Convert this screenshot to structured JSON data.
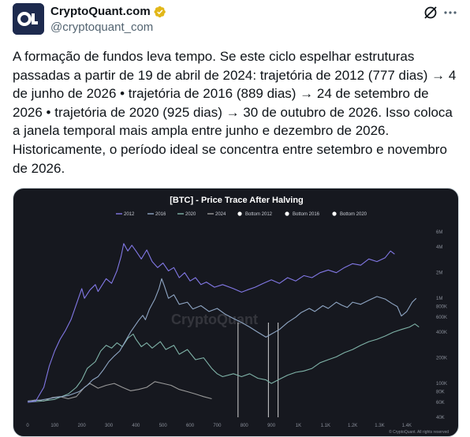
{
  "author": {
    "display_name": "CryptoQuant.com",
    "handle": "@cryptoquant_com",
    "verified_badge_color": "#e2b719",
    "avatar_icon": "cryptoquant-logo-icon"
  },
  "actions": {
    "grok_icon": "grok-icon",
    "more_icon": "more-horizontal-icon"
  },
  "tweet": {
    "text": "A formação de fundos leva tempo. Se este ciclo espelhar estruturas passadas a partir de 19 de abril de 2024: trajetória de 2012 (777 dias) → 4 de junho de 2026 • trajetória de 2016 (889 dias) → 24 de setembro de 2026 • trajetória de 2020 (925 dias) → 30 de outubro de 2026. Isso coloca a janela temporal mais ampla entre junho e dezembro de 2026. Historicamente, o período ideal se concentra entre setembro e novembro de 2026."
  },
  "chart_data": {
    "type": "line",
    "title": "[BTC] - Price Trace After Halving",
    "watermark": "CryptoQuant",
    "footer": "© CryptoQuant. All rights reserved",
    "y_scale": "log",
    "grid": false,
    "legend_position": "top",
    "xlim": [
      0,
      1450
    ],
    "ylim": [
      40000,
      7000000
    ],
    "x_ticks": [
      "0",
      "100",
      "200",
      "300",
      "400",
      "500",
      "600",
      "700",
      "800",
      "900",
      "1K",
      "1.1K",
      "1.2K",
      "1.3K",
      "1.4K"
    ],
    "x_tick_values": [
      0,
      100,
      200,
      300,
      400,
      500,
      600,
      700,
      800,
      900,
      1000,
      1100,
      1200,
      1300,
      1400
    ],
    "y_ticks": [
      "6M",
      "4M",
      "2M",
      "1M",
      "800K",
      "600K",
      "400K",
      "200K",
      "100K",
      "80K",
      "60K",
      "40K"
    ],
    "y_tick_values": [
      6000000,
      4000000,
      2000000,
      1000000,
      800000,
      600000,
      400000,
      200000,
      100000,
      80000,
      60000,
      40000
    ],
    "legend": [
      {
        "label": "2012",
        "color": "#8278e6",
        "style": "line"
      },
      {
        "label": "2016",
        "color": "#8fa6c4",
        "style": "line"
      },
      {
        "label": "2020",
        "color": "#7fb3a8",
        "style": "line"
      },
      {
        "label": "2024",
        "color": "#9a9a9a",
        "style": "line"
      },
      {
        "label": "Bottom 2012",
        "color": "#ffffff",
        "style": "dot"
      },
      {
        "label": "Bottom 2016",
        "color": "#ffffff",
        "style": "dot"
      },
      {
        "label": "Bottom 2020",
        "color": "#ffffff",
        "style": "dot"
      }
    ],
    "bottom_markers_x": [
      777,
      889,
      925
    ],
    "series": [
      {
        "name": "2012",
        "color": "#8278e6",
        "points": [
          [
            0,
            60000
          ],
          [
            30,
            62000
          ],
          [
            60,
            90000
          ],
          [
            80,
            160000
          ],
          [
            100,
            240000
          ],
          [
            120,
            330000
          ],
          [
            140,
            420000
          ],
          [
            160,
            560000
          ],
          [
            180,
            850000
          ],
          [
            200,
            1300000
          ],
          [
            210,
            1000000
          ],
          [
            230,
            1250000
          ],
          [
            250,
            1450000
          ],
          [
            260,
            1200000
          ],
          [
            290,
            1700000
          ],
          [
            310,
            1500000
          ],
          [
            330,
            2100000
          ],
          [
            345,
            3100000
          ],
          [
            355,
            4400000
          ],
          [
            370,
            3600000
          ],
          [
            385,
            4200000
          ],
          [
            400,
            3600000
          ],
          [
            420,
            2900000
          ],
          [
            440,
            3700000
          ],
          [
            460,
            2700000
          ],
          [
            480,
            2300000
          ],
          [
            500,
            2600000
          ],
          [
            520,
            2100000
          ],
          [
            540,
            2300000
          ],
          [
            560,
            1750000
          ],
          [
            580,
            2000000
          ],
          [
            600,
            1600000
          ],
          [
            620,
            1750000
          ],
          [
            640,
            1450000
          ],
          [
            660,
            1550000
          ],
          [
            690,
            1350000
          ],
          [
            720,
            1450000
          ],
          [
            760,
            1300000
          ],
          [
            790,
            1180000
          ],
          [
            810,
            1250000
          ],
          [
            840,
            1350000
          ],
          [
            870,
            1500000
          ],
          [
            900,
            1650000
          ],
          [
            930,
            1500000
          ],
          [
            960,
            1750000
          ],
          [
            990,
            1600000
          ],
          [
            1020,
            1850000
          ],
          [
            1050,
            1750000
          ],
          [
            1080,
            2000000
          ],
          [
            1110,
            2150000
          ],
          [
            1140,
            2000000
          ],
          [
            1170,
            2300000
          ],
          [
            1200,
            2550000
          ],
          [
            1230,
            2450000
          ],
          [
            1260,
            2900000
          ],
          [
            1290,
            2700000
          ],
          [
            1320,
            3000000
          ],
          [
            1340,
            3600000
          ],
          [
            1355,
            3300000
          ]
        ]
      },
      {
        "name": "2016",
        "color": "#8fa6c4",
        "points": [
          [
            0,
            62000
          ],
          [
            50,
            64000
          ],
          [
            100,
            68000
          ],
          [
            150,
            72000
          ],
          [
            190,
            80000
          ],
          [
            220,
            95000
          ],
          [
            240,
            110000
          ],
          [
            260,
            120000
          ],
          [
            280,
            145000
          ],
          [
            300,
            180000
          ],
          [
            320,
            210000
          ],
          [
            340,
            240000
          ],
          [
            360,
            310000
          ],
          [
            380,
            400000
          ],
          [
            395,
            470000
          ],
          [
            410,
            550000
          ],
          [
            425,
            630000
          ],
          [
            435,
            560000
          ],
          [
            450,
            750000
          ],
          [
            470,
            980000
          ],
          [
            485,
            1300000
          ],
          [
            495,
            1700000
          ],
          [
            505,
            1400000
          ],
          [
            520,
            1000000
          ],
          [
            540,
            1100000
          ],
          [
            560,
            850000
          ],
          [
            590,
            900000
          ],
          [
            610,
            750000
          ],
          [
            640,
            820000
          ],
          [
            670,
            700000
          ],
          [
            700,
            760000
          ],
          [
            730,
            650000
          ],
          [
            760,
            580000
          ],
          [
            790,
            520000
          ],
          [
            820,
            460000
          ],
          [
            850,
            400000
          ],
          [
            880,
            350000
          ],
          [
            900,
            380000
          ],
          [
            930,
            430000
          ],
          [
            960,
            520000
          ],
          [
            990,
            600000
          ],
          [
            1010,
            680000
          ],
          [
            1040,
            760000
          ],
          [
            1060,
            700000
          ],
          [
            1090,
            820000
          ],
          [
            1110,
            760000
          ],
          [
            1140,
            900000
          ],
          [
            1160,
            830000
          ],
          [
            1180,
            780000
          ],
          [
            1200,
            900000
          ],
          [
            1230,
            850000
          ],
          [
            1260,
            950000
          ],
          [
            1290,
            1050000
          ],
          [
            1320,
            980000
          ],
          [
            1345,
            870000
          ],
          [
            1365,
            800000
          ],
          [
            1380,
            620000
          ],
          [
            1400,
            700000
          ],
          [
            1420,
            900000
          ],
          [
            1435,
            1000000
          ]
        ]
      },
      {
        "name": "2020",
        "color": "#7fb3a8",
        "points": [
          [
            0,
            60000
          ],
          [
            50,
            62000
          ],
          [
            100,
            65000
          ],
          [
            150,
            75000
          ],
          [
            180,
            90000
          ],
          [
            200,
            110000
          ],
          [
            220,
            150000
          ],
          [
            250,
            180000
          ],
          [
            270,
            240000
          ],
          [
            290,
            280000
          ],
          [
            310,
            260000
          ],
          [
            330,
            300000
          ],
          [
            350,
            270000
          ],
          [
            370,
            340000
          ],
          [
            390,
            380000
          ],
          [
            400,
            330000
          ],
          [
            420,
            270000
          ],
          [
            440,
            300000
          ],
          [
            460,
            260000
          ],
          [
            490,
            310000
          ],
          [
            510,
            250000
          ],
          [
            540,
            280000
          ],
          [
            560,
            220000
          ],
          [
            590,
            250000
          ],
          [
            620,
            190000
          ],
          [
            650,
            200000
          ],
          [
            680,
            150000
          ],
          [
            700,
            130000
          ],
          [
            720,
            120000
          ],
          [
            760,
            130000
          ],
          [
            790,
            120000
          ],
          [
            820,
            130000
          ],
          [
            850,
            115000
          ],
          [
            880,
            110000
          ],
          [
            900,
            100000
          ],
          [
            930,
            112000
          ],
          [
            960,
            125000
          ],
          [
            990,
            135000
          ],
          [
            1020,
            140000
          ],
          [
            1050,
            150000
          ],
          [
            1080,
            175000
          ],
          [
            1110,
            190000
          ],
          [
            1140,
            205000
          ],
          [
            1170,
            230000
          ],
          [
            1200,
            250000
          ],
          [
            1230,
            280000
          ],
          [
            1260,
            310000
          ],
          [
            1290,
            330000
          ],
          [
            1320,
            360000
          ],
          [
            1350,
            400000
          ],
          [
            1380,
            430000
          ],
          [
            1410,
            460000
          ],
          [
            1430,
            500000
          ],
          [
            1445,
            460000
          ]
        ]
      },
      {
        "name": "2024",
        "color": "#9a9a9a",
        "points": [
          [
            0,
            62000
          ],
          [
            30,
            64000
          ],
          [
            60,
            62000
          ],
          [
            90,
            68000
          ],
          [
            120,
            70000
          ],
          [
            150,
            66000
          ],
          [
            180,
            70000
          ],
          [
            210,
            90000
          ],
          [
            230,
            100000
          ],
          [
            260,
            88000
          ],
          [
            290,
            95000
          ],
          [
            320,
            100000
          ],
          [
            350,
            90000
          ],
          [
            380,
            82000
          ],
          [
            410,
            85000
          ],
          [
            440,
            90000
          ],
          [
            470,
            105000
          ],
          [
            500,
            100000
          ],
          [
            530,
            95000
          ],
          [
            560,
            85000
          ],
          [
            590,
            80000
          ],
          [
            620,
            75000
          ],
          [
            650,
            70000
          ],
          [
            680,
            66000
          ]
        ]
      }
    ]
  }
}
